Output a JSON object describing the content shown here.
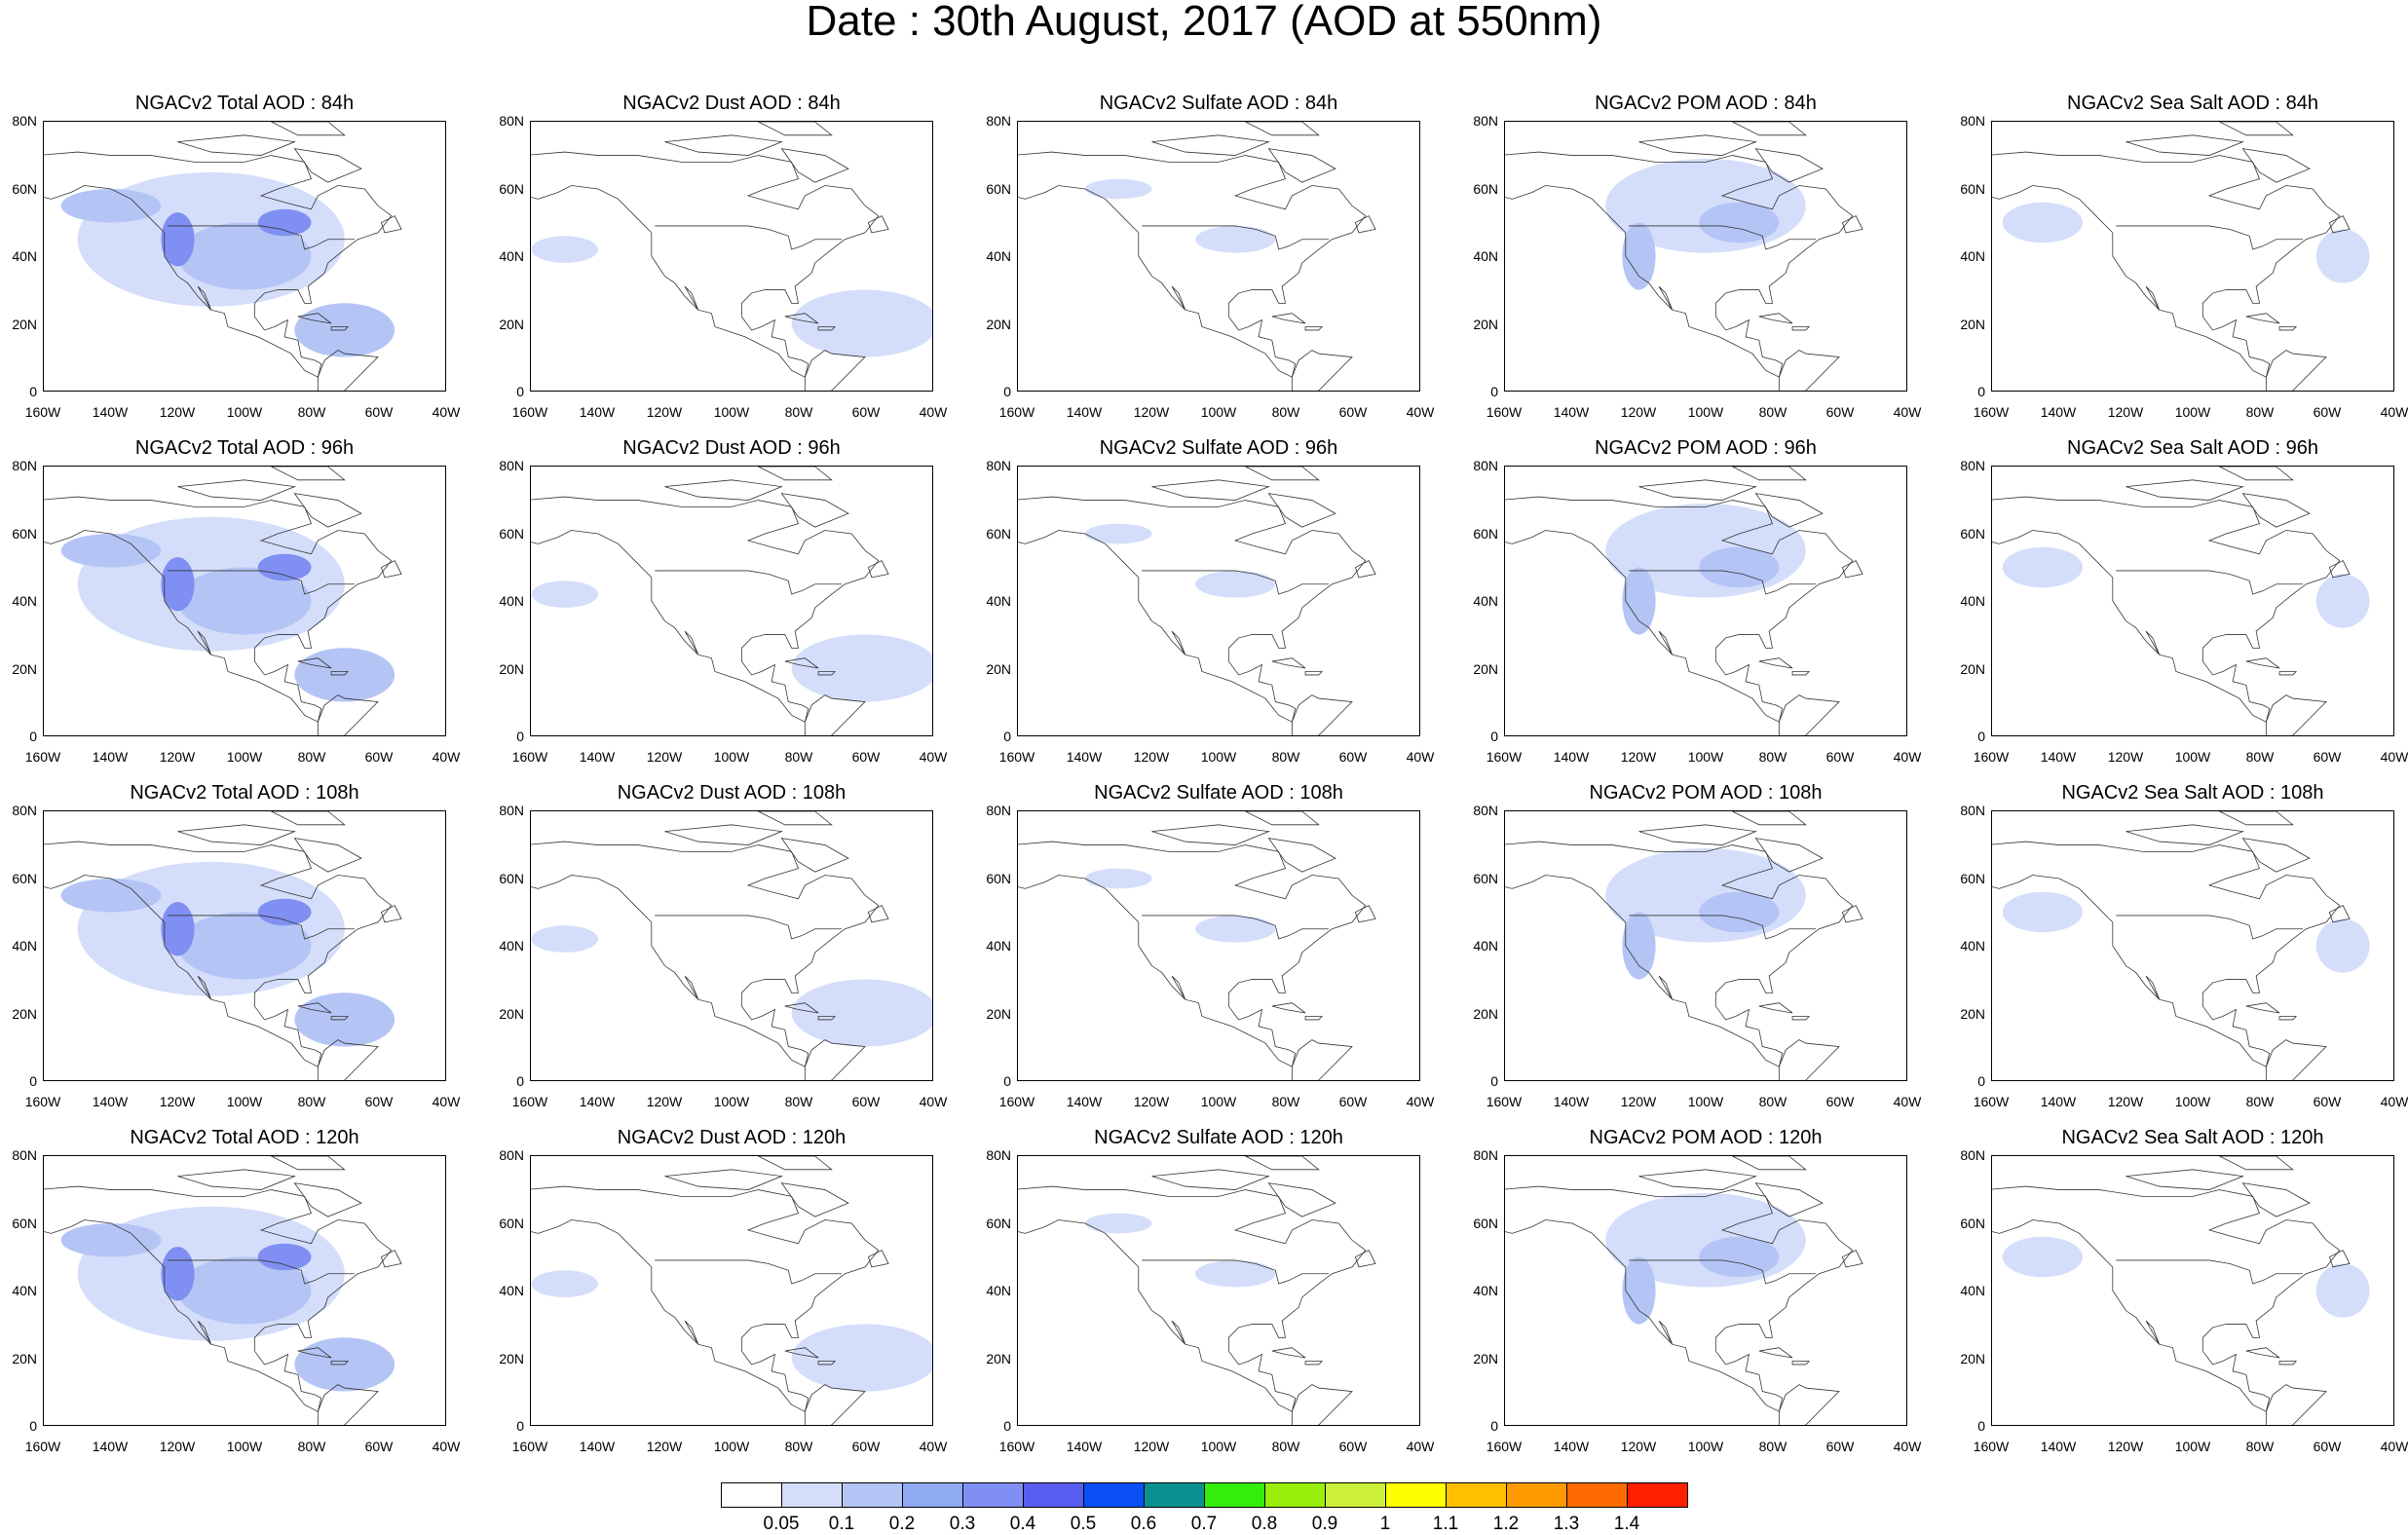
{
  "title": "Date : 30th August, 2017 (AOD at 550nm)",
  "lat_labels": [
    "80N",
    "60N",
    "40N",
    "20N",
    "0"
  ],
  "lon_labels": [
    "160W",
    "140W",
    "120W",
    "100W",
    "80W",
    "60W",
    "40W"
  ],
  "panels": [
    [
      "NGACv2 Total AOD : 84h",
      "NGACv2 Dust AOD : 84h",
      "NGACv2 Sulfate AOD : 84h",
      "NGACv2 POM AOD : 84h",
      "NGACv2 Sea Salt AOD : 84h"
    ],
    [
      "NGACv2 Total AOD : 96h",
      "NGACv2 Dust AOD : 96h",
      "NGACv2 Sulfate AOD : 96h",
      "NGACv2 POM AOD : 96h",
      "NGACv2 Sea Salt AOD : 96h"
    ],
    [
      "NGACv2 Total AOD : 108h",
      "NGACv2 Dust AOD : 108h",
      "NGACv2 Sulfate AOD : 108h",
      "NGACv2 POM AOD : 108h",
      "NGACv2 Sea Salt AOD : 108h"
    ],
    [
      "NGACv2 Total AOD : 120h",
      "NGACv2 Dust AOD : 120h",
      "NGACv2 Sulfate AOD : 120h",
      "NGACv2 POM AOD : 120h",
      "NGACv2 Sea Salt  AOD : 120h"
    ]
  ],
  "colorbar": {
    "labels": [
      "0.05",
      "0.1",
      "0.2",
      "0.3",
      "0.4",
      "0.5",
      "0.6",
      "0.7",
      "0.8",
      "0.9",
      "1",
      "1.1",
      "1.2",
      "1.3",
      "1.4"
    ],
    "colors": [
      "#ffffff",
      "#d4defa",
      "#b4c4f5",
      "#8fa9f2",
      "#7f8ff2",
      "#5a5ef0",
      "#0a50f5",
      "#099190",
      "#33ee0b",
      "#99ee0b",
      "#ccf03a",
      "#ffff00",
      "#ffc000",
      "#ff9a00",
      "#ff6a00",
      "#ff2000"
    ]
  },
  "colors": {
    "land_outline": "#333333",
    "fill_low": "#d4defa",
    "fill_mid": "#b4c4f5",
    "fill_high": "#7f8ff2"
  }
}
